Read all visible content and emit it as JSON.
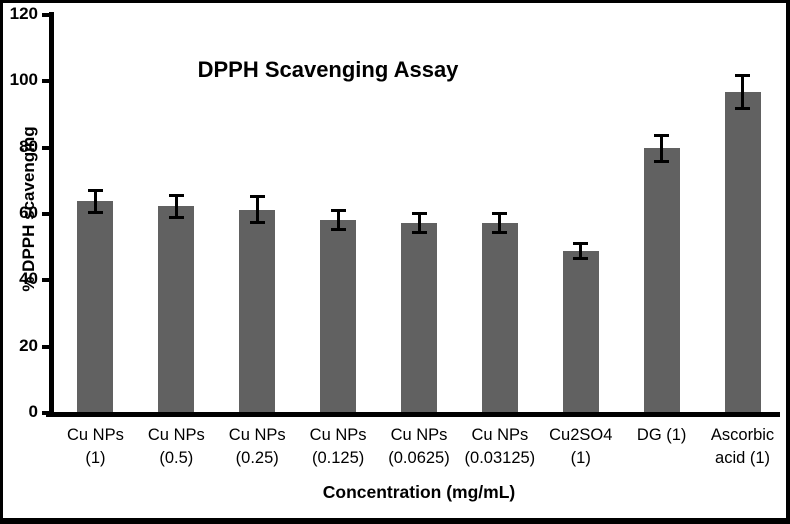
{
  "chart_data": {
    "type": "bar",
    "title": "DPPH Scavenging Assay",
    "xlabel": "Concentration (mg/mL)",
    "ylabel": "% DPPH scavenging",
    "ylim": [
      0,
      120
    ],
    "yticks": [
      0,
      20,
      40,
      60,
      80,
      100,
      120
    ],
    "grid": false,
    "legend_position": "none",
    "categories": [
      "Cu NPs (1)",
      "Cu NPs (0.5)",
      "Cu NPs (0.25)",
      "Cu NPs (0.125)",
      "Cu NPs (0.0625)",
      "Cu NPs (0.03125)",
      "Cu2SO4 (1)",
      "DG (1)",
      "Ascorbic acid (1)"
    ],
    "category_lines": [
      [
        "Cu NPs",
        "(1)"
      ],
      [
        "Cu NPs",
        "(0.5)"
      ],
      [
        "Cu NPs",
        "(0.25)"
      ],
      [
        "Cu NPs",
        "(0.125)"
      ],
      [
        "Cu NPs",
        "(0.0625)"
      ],
      [
        "Cu NPs",
        "(0.03125)"
      ],
      [
        "Cu2SO4",
        "(1)"
      ],
      [
        "DG (1)",
        ""
      ],
      [
        "Ascorbic",
        "acid (1)"
      ]
    ],
    "values": [
      63.5,
      62,
      61,
      58,
      57,
      57,
      48.5,
      79.5,
      96.5
    ],
    "errors": [
      3.5,
      3.5,
      4,
      3,
      3,
      3,
      2.5,
      4,
      5
    ],
    "bar_color": "#616161",
    "error_bar_color": "#000000",
    "axis_color": "#000000",
    "frame_border_color": "#000000",
    "background_color": "#ffffff"
  }
}
